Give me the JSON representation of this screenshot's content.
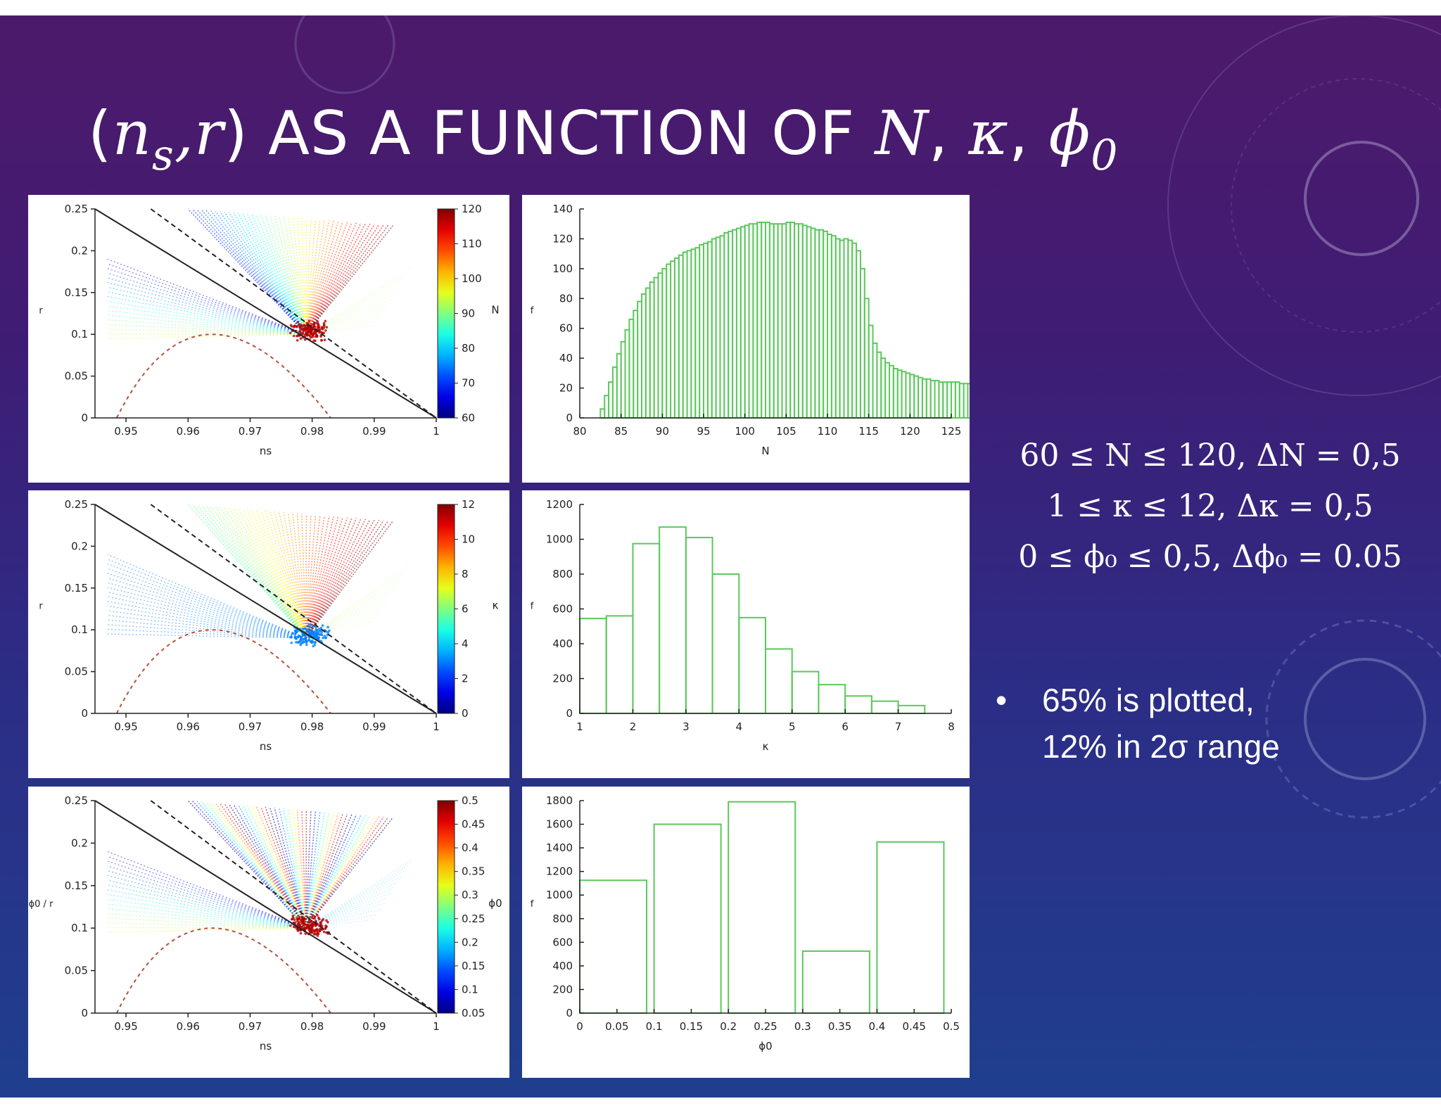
{
  "slide": {
    "title": {
      "prefix": "(",
      "ns_base": "n",
      "ns_sub": "s",
      "comma_r": ",r",
      "close": ")",
      "text": " AS A FUNCTION OF ",
      "N": "N",
      "sep1": ", ",
      "kappa": "κ",
      "sep2": ", ",
      "phi": "ϕ",
      "phi_sub": "0"
    },
    "equations": [
      "60 ≤ N ≤ 120,   ΔN = 0,5",
      "1 ≤ κ ≤ 12,   Δκ = 0,5",
      "0 ≤ ϕ₀ ≤ 0,5,   Δϕ₀ = 0.05"
    ],
    "bullet_marker": "•",
    "bullet_lines": [
      "65% is plotted,",
      "12% in 2σ range"
    ],
    "colors": {
      "bg_top": "#4d1a6a",
      "bg_bottom": "#1f3f8e",
      "hist_green": "#5cc85c",
      "accent_white": "#ffffff"
    }
  },
  "chart_data": [
    {
      "type": "scatter",
      "xlabel": "ns",
      "ylabel": "r",
      "xlim": [
        0.945,
        1.0
      ],
      "ylim": [
        0,
        0.25
      ],
      "xticks": [
        "0.95",
        "0.96",
        "0.97",
        "0.98",
        "0.99",
        "1"
      ],
      "yticks": [
        "0",
        "0.05",
        "0.1",
        "0.15",
        "0.2",
        "0.25"
      ],
      "colorbar": {
        "label": "N",
        "ticks": [
          "60",
          "70",
          "80",
          "90",
          "100",
          "110",
          "120"
        ],
        "range": [
          60,
          120
        ]
      },
      "focus": [
        0.979,
        0.1
      ]
    },
    {
      "type": "bar",
      "xlabel": "N",
      "ylabel": "f",
      "xlim": [
        80,
        125
      ],
      "ylim": [
        0,
        140
      ],
      "xticks": [
        "80",
        "85",
        "90",
        "95",
        "100",
        "105",
        "110",
        "115",
        "120",
        "125"
      ],
      "yticks": [
        "0",
        "20",
        "40",
        "60",
        "80",
        "100",
        "120",
        "140"
      ],
      "bin_start": 82.5,
      "bin_width": 0.5,
      "values": [
        6,
        15,
        24,
        34,
        43,
        51,
        59,
        66,
        72,
        78,
        83,
        87,
        91,
        94,
        97,
        100,
        103,
        105,
        107,
        109,
        111,
        112,
        113,
        114,
        116,
        117,
        118,
        120,
        121,
        122,
        124,
        125,
        126,
        127,
        128,
        129,
        130,
        130,
        131,
        131,
        131,
        130,
        130,
        130,
        130,
        131,
        131,
        130,
        130,
        129,
        128,
        127,
        126,
        126,
        125,
        123,
        122,
        120,
        119,
        120,
        119,
        117,
        112,
        100,
        80,
        62,
        50,
        44,
        40,
        37,
        35,
        33,
        32,
        31,
        30,
        29,
        28,
        27,
        26,
        26,
        25,
        25,
        24,
        24,
        24,
        24,
        24,
        23,
        23,
        23,
        23,
        22,
        22,
        22,
        22,
        22,
        22
      ]
    },
    {
      "type": "scatter",
      "xlabel": "ns",
      "ylabel": "r",
      "xlim": [
        0.945,
        1.0
      ],
      "ylim": [
        0,
        0.25
      ],
      "xticks": [
        "0.95",
        "0.96",
        "0.97",
        "0.98",
        "0.99",
        "1"
      ],
      "yticks": [
        "0",
        "0.05",
        "0.1",
        "0.15",
        "0.2",
        "0.25"
      ],
      "colorbar": {
        "label": "κ",
        "ticks": [
          "0",
          "2",
          "4",
          "6",
          "8",
          "10",
          "12"
        ],
        "range": [
          0,
          12
        ]
      },
      "focus": [
        0.979,
        0.09
      ]
    },
    {
      "type": "bar",
      "xlabel": "κ",
      "ylabel": "f",
      "xlim": [
        1,
        8
      ],
      "ylim": [
        0,
        1200
      ],
      "xticks": [
        "1",
        "2",
        "3",
        "4",
        "5",
        "6",
        "7",
        "8"
      ],
      "yticks": [
        "0",
        "200",
        "400",
        "600",
        "800",
        "1000",
        "1200"
      ],
      "bins": [
        [
          1.0,
          1.5
        ],
        [
          1.5,
          2.0
        ],
        [
          2.0,
          2.5
        ],
        [
          2.5,
          3.0
        ],
        [
          3.0,
          3.5
        ],
        [
          3.5,
          4.0
        ],
        [
          4.0,
          4.5
        ],
        [
          4.5,
          5.0
        ],
        [
          5.0,
          5.5
        ],
        [
          5.5,
          6.0
        ],
        [
          6.0,
          6.5
        ],
        [
          6.5,
          7.0
        ],
        [
          7.0,
          7.5
        ]
      ],
      "values": [
        545,
        560,
        975,
        1070,
        1010,
        800,
        550,
        370,
        240,
        165,
        100,
        70,
        45
      ]
    },
    {
      "type": "scatter",
      "xlabel": "ns",
      "ylabel": "ϕ0 / r",
      "xlim": [
        0.945,
        1.0
      ],
      "ylim": [
        0,
        0.25
      ],
      "xticks": [
        "0.95",
        "0.96",
        "0.97",
        "0.98",
        "0.99",
        "1"
      ],
      "yticks": [
        "0",
        "0.05",
        "0.1",
        "0.15",
        "0.2",
        "0.25"
      ],
      "colorbar": {
        "label": "ϕ0",
        "ticks": [
          "0.05",
          "0.1",
          "0.15",
          "0.2",
          "0.25",
          "0.3",
          "0.35",
          "0.4",
          "0.45",
          "0.5"
        ],
        "range": [
          0.05,
          0.5
        ]
      },
      "focus": [
        0.979,
        0.1
      ]
    },
    {
      "type": "bar",
      "xlabel": "ϕ0",
      "ylabel": "f",
      "xlim": [
        0,
        0.5
      ],
      "ylim": [
        0,
        1800
      ],
      "xticks": [
        "0",
        "0.05",
        "0.1",
        "0.15",
        "0.2",
        "0.25",
        "0.3",
        "0.35",
        "0.4",
        "0.45",
        "0.5"
      ],
      "yticks": [
        "0",
        "200",
        "400",
        "600",
        "800",
        "1000",
        "1200",
        "1400",
        "1600",
        "1800"
      ],
      "bins": [
        [
          0.0,
          0.09
        ],
        [
          0.1,
          0.19
        ],
        [
          0.2,
          0.29
        ],
        [
          0.3,
          0.39
        ],
        [
          0.4,
          0.49
        ]
      ],
      "values": [
        1125,
        1600,
        1790,
        525,
        1450
      ]
    }
  ]
}
